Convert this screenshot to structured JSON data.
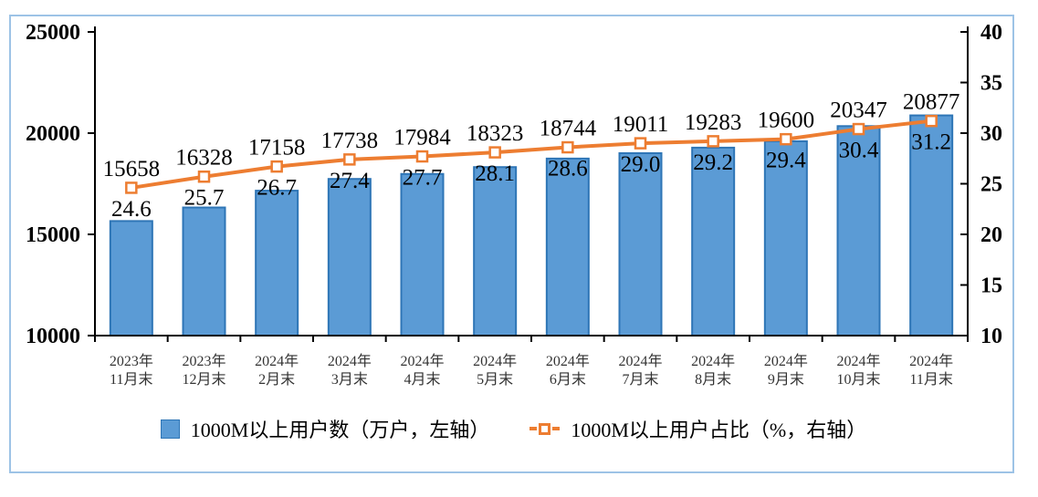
{
  "figure": {
    "background": "#FFFFFF",
    "frame_border_color": "#9DC3E6",
    "axis_color": "#000000"
  },
  "legend": {
    "bar_label": "1000M以上用户数（万户，左轴）",
    "line_label": "1000M以上用户占比（%，右轴）",
    "position": "bottom"
  },
  "chart_data": {
    "type": "bar",
    "subtype": "bar-line-combo-dual-axis",
    "title": "",
    "xlabel": "",
    "ylabel_left": "万户",
    "ylabel_right": "%",
    "grid": false,
    "legend_position": "bottom",
    "categories": [
      "2023年11月末",
      "2023年12月末",
      "2024年2月末",
      "2024年3月末",
      "2024年4月末",
      "2024年5月末",
      "2024年6月末",
      "2024年7月末",
      "2024年8月末",
      "2024年9月末",
      "2024年10月末",
      "2024年11月末"
    ],
    "category_tick_lines": [
      [
        "2023年",
        "11月末"
      ],
      [
        "2023年",
        "12月末"
      ],
      [
        "2024年",
        "2月末"
      ],
      [
        "2024年",
        "3月末"
      ],
      [
        "2024年",
        "4月末"
      ],
      [
        "2024年",
        "5月末"
      ],
      [
        "2024年",
        "6月末"
      ],
      [
        "2024年",
        "7月末"
      ],
      [
        "2024年",
        "8月末"
      ],
      [
        "2024年",
        "9月末"
      ],
      [
        "2024年",
        "10月末"
      ],
      [
        "2024年",
        "11月末"
      ]
    ],
    "series": [
      {
        "name": "1000M以上用户数（万户，左轴）",
        "type": "bar",
        "axis": "left",
        "values": [
          15658,
          16328,
          17158,
          17738,
          17984,
          18323,
          18744,
          19011,
          19283,
          19600,
          20347,
          20877
        ],
        "value_labels": [
          "15658",
          "16328",
          "17158",
          "17738",
          "17984",
          "18323",
          "18744",
          "19011",
          "19283",
          "19600",
          "20347",
          "20877"
        ],
        "fill": "#5B9BD5",
        "stroke": "#2E75B6"
      },
      {
        "name": "1000M以上用户占比（%，右轴）",
        "type": "line",
        "axis": "right",
        "values": [
          24.6,
          25.7,
          26.7,
          27.4,
          27.7,
          28.1,
          28.6,
          29.0,
          29.2,
          29.4,
          30.4,
          31.2
        ],
        "value_labels": [
          "24.6",
          "25.7",
          "26.7",
          "27.4",
          "27.7",
          "28.1",
          "28.6",
          "29.0",
          "29.2",
          "29.4",
          "30.4",
          "31.2"
        ],
        "color": "#ED7D31",
        "marker": "open-square"
      }
    ],
    "left_axis": {
      "min": 10000,
      "max": 25000,
      "step": 5000,
      "ticks": [
        "10000",
        "15000",
        "20000",
        "25000"
      ]
    },
    "right_axis": {
      "min": 10,
      "max": 40,
      "step": 5,
      "ticks": [
        "10",
        "15",
        "20",
        "25",
        "30",
        "35",
        "40"
      ]
    }
  }
}
